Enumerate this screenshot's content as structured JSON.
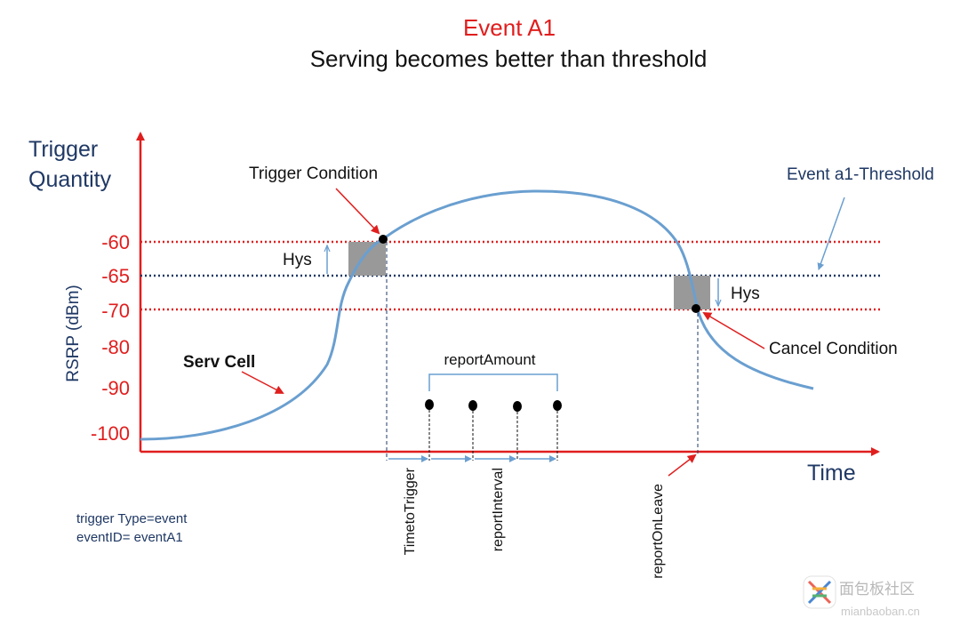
{
  "title": "Event A1",
  "subtitle": "Serving becomes better than threshold",
  "y_axis_title_line1": "Trigger",
  "y_axis_title_line2": "Quantity",
  "y_axis_label": "RSRP (dBm)",
  "y_ticks": [
    "-60",
    "-65",
    "-70",
    "-80",
    "-90",
    "-100"
  ],
  "x_axis_label": "Time",
  "labels": {
    "trigger_condition": "Trigger Condition",
    "threshold": "Event a1-Threshold",
    "hys_left": "Hys",
    "hys_right": "Hys",
    "cancel_condition": "Cancel Condition",
    "serv_cell": "Serv Cell",
    "report_amount": "reportAmount",
    "time_to_trigger": "TimetoTrigger",
    "report_interval": "reportInterval",
    "report_on_leave": "reportOnLeave",
    "config_line1": "trigger Type=event",
    "config_line2": "eventID= eventA1"
  },
  "watermark": {
    "line1": "面包板社区",
    "line2": "mianbaoban.cn"
  },
  "colors": {
    "title_red": "#e01e1e",
    "axis_red": "#e01e1e",
    "axis_text_navy": "#1f3864",
    "curve_blue": "#6a9fd0",
    "threshold_navy": "#1f3864",
    "hys_box_gray": "#999999"
  }
}
